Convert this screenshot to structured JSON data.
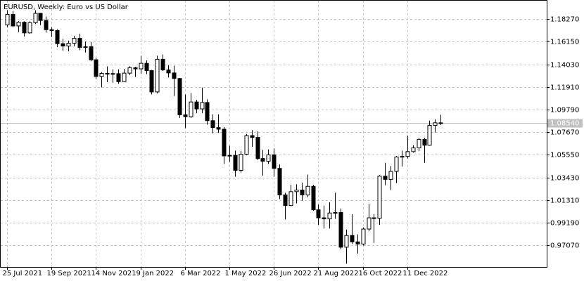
{
  "chart_data": {
    "type": "candlestick",
    "title": "EURUSD, Weekly:  Euro vs US Dollar",
    "categories": [
      "25 Jul 2021",
      null,
      null,
      null,
      null,
      null,
      null,
      null,
      "19 Sep 2021",
      null,
      null,
      null,
      null,
      null,
      null,
      null,
      "14 Nov 2021",
      null,
      null,
      null,
      null,
      null,
      null,
      null,
      "9 Jan 2022",
      null,
      null,
      null,
      null,
      null,
      null,
      null,
      "6 Mar 2022",
      null,
      null,
      null,
      null,
      null,
      null,
      null,
      "1 May 2022",
      null,
      null,
      null,
      null,
      null,
      null,
      null,
      "26 Jun 2022",
      null,
      null,
      null,
      null,
      null,
      null,
      null,
      "21 Aug 2022",
      null,
      null,
      null,
      null,
      null,
      null,
      null,
      "16 Oct 2022",
      null,
      null,
      null,
      null,
      null,
      null,
      null,
      "11 Dec 2022",
      null,
      null,
      null,
      null,
      null,
      null
    ],
    "open": [
      1.1772,
      1.187,
      1.1762,
      1.1797,
      1.1697,
      1.1793,
      1.188,
      1.1813,
      1.1727,
      1.1719,
      1.1596,
      1.1574,
      1.16,
      1.1646,
      1.156,
      1.1567,
      1.1445,
      1.1289,
      1.1318,
      1.1316,
      1.1315,
      1.124,
      1.132,
      1.137,
      1.136,
      1.1412,
      1.1344,
      1.1144,
      1.145,
      1.135,
      1.1322,
      1.127,
      1.093,
      1.0912,
      1.105,
      1.0985,
      1.1045,
      1.0875,
      1.081,
      1.0795,
      1.0545,
      1.055,
      1.041,
      1.056,
      1.0735,
      1.0718,
      1.052,
      1.0495,
      1.0555,
      1.0428,
      1.018,
      1.008,
      1.021,
      1.0225,
      1.018,
      1.026,
      1.004,
      0.9965,
      0.9955,
      1.001,
      1.0015,
      0.969,
      0.98,
      0.974,
      0.972,
      0.986,
      0.9965,
      0.996,
      1.0355,
      1.0325,
      1.04,
      1.0535,
      1.054,
      1.0585,
      1.062,
      1.07,
      1.0645,
      1.083,
      1.0855
    ],
    "high": [
      1.1909,
      1.19,
      1.1806,
      1.1805,
      1.1805,
      1.1909,
      1.1885,
      1.185,
      1.175,
      1.173,
      1.164,
      1.1625,
      1.167,
      1.169,
      1.1616,
      1.161,
      1.1464,
      1.133,
      1.1383,
      1.1355,
      1.1355,
      1.136,
      1.1385,
      1.138,
      1.1482,
      1.144,
      1.135,
      1.1483,
      1.1495,
      1.1395,
      1.139,
      1.1275,
      1.112,
      1.1135,
      1.107,
      1.1185,
      1.1075,
      1.0935,
      1.0935,
      1.0815,
      1.064,
      1.0595,
      1.059,
      1.075,
      1.0786,
      1.0775,
      1.06,
      1.0605,
      1.0615,
      1.0465,
      1.02,
      1.0275,
      1.028,
      1.0295,
      1.037,
      1.0275,
      1.009,
      1.008,
      1.011,
      1.02,
      1.005,
      0.9855,
      0.9999,
      0.981,
      0.9875,
      1.0095,
      1.0,
      1.0365,
      1.048,
      1.045,
      1.0545,
      1.0595,
      1.0735,
      1.0645,
      1.0715,
      1.0714,
      1.0875,
      1.0887,
      1.093
    ],
    "low": [
      1.1752,
      1.1752,
      1.1705,
      1.1664,
      1.169,
      1.178,
      1.177,
      1.17,
      1.166,
      1.1563,
      1.153,
      1.1524,
      1.157,
      1.1535,
      1.1513,
      1.1432,
      1.1264,
      1.1186,
      1.1235,
      1.123,
      1.122,
      1.1235,
      1.13,
      1.1285,
      1.1315,
      1.131,
      1.1121,
      1.113,
      1.134,
      1.128,
      1.1106,
      1.09,
      1.0805,
      1.09,
      1.0945,
      1.0945,
      1.0837,
      1.0757,
      1.076,
      1.047,
      1.049,
      1.035,
      1.039,
      1.055,
      1.063,
      1.0505,
      1.036,
      1.047,
      1.035,
      1.014,
      0.995,
      1.0075,
      1.01,
      1.0125,
      1.016,
      1.003,
      0.99,
      0.9865,
      0.9865,
      0.9955,
      0.967,
      0.9535,
      0.972,
      0.963,
      0.9705,
      0.984,
      0.973,
      0.99,
      1.027,
      1.0225,
      1.029,
      1.0445,
      1.052,
      1.0575,
      1.059,
      1.048,
      1.064,
      1.0765,
      1.0835
    ],
    "close": [
      1.187,
      1.1762,
      1.1797,
      1.1697,
      1.1793,
      1.188,
      1.1813,
      1.1727,
      1.1719,
      1.1596,
      1.1574,
      1.16,
      1.1646,
      1.156,
      1.1567,
      1.1445,
      1.1289,
      1.1318,
      1.1316,
      1.1315,
      1.124,
      1.132,
      1.137,
      1.136,
      1.1412,
      1.1344,
      1.1144,
      1.145,
      1.135,
      1.1322,
      1.127,
      1.093,
      1.0912,
      1.105,
      1.0985,
      1.1045,
      1.0875,
      1.081,
      1.0795,
      1.0545,
      1.055,
      1.041,
      1.056,
      1.0735,
      1.0718,
      1.052,
      1.0495,
      1.0555,
      1.0428,
      1.018,
      1.008,
      1.021,
      1.0225,
      1.018,
      1.026,
      1.004,
      0.9965,
      0.9955,
      1.001,
      1.0015,
      0.969,
      0.98,
      0.974,
      0.972,
      0.986,
      0.9965,
      0.996,
      1.0355,
      1.0325,
      1.04,
      1.0535,
      1.054,
      1.0585,
      1.062,
      1.07,
      1.0645,
      1.083,
      1.0855,
      1.0854
    ],
    "up_color": "#ffffff",
    "down_color": "#000000",
    "wick_color": "#000000",
    "ylim": [
      0.9505,
      1.2005
    ],
    "yticks": [
      {
        "value": 0.9707,
        "label": "0.97070"
      },
      {
        "value": 0.9919,
        "label": "0.99190"
      },
      {
        "value": 1.0131,
        "label": "1.01310"
      },
      {
        "value": 1.0343,
        "label": "1.03430"
      },
      {
        "value": 1.0555,
        "label": "1.05550"
      },
      {
        "value": 1.0767,
        "label": "1.07670"
      },
      {
        "value": 1.0979,
        "label": "1.09790"
      },
      {
        "value": 1.1191,
        "label": "1.11910"
      },
      {
        "value": 1.1403,
        "label": "1.14030"
      },
      {
        "value": 1.1615,
        "label": "1.16150"
      },
      {
        "value": 1.1827,
        "label": "1.18270"
      }
    ],
    "last_price": {
      "value": 1.0854,
      "label": "1.08540"
    },
    "grid": true
  }
}
